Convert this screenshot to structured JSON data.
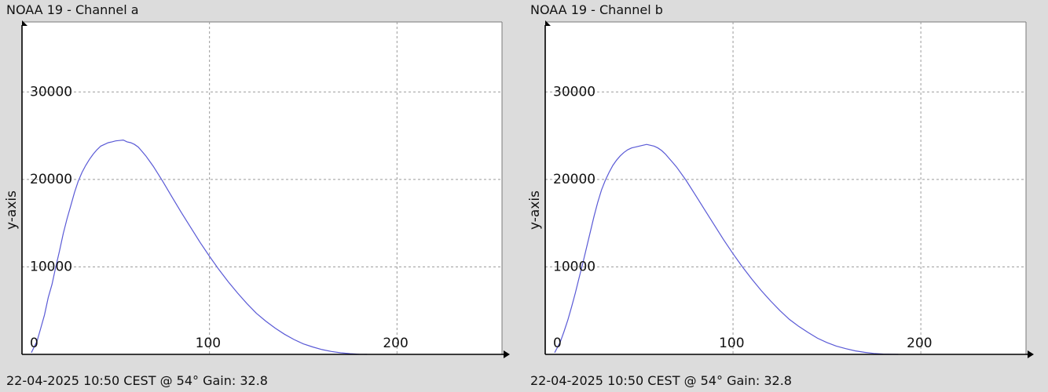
{
  "colors": {
    "background": "#dcdcdc",
    "plot_area": "#ffffff",
    "series": "#5a5ad6",
    "grid": "#9a9a9a"
  },
  "chart_data": [
    {
      "type": "line",
      "title": "NOAA 19 - Channel a",
      "footer": "22-04-2025 10:50 CEST @ 54° Gain: 32.8",
      "ylabel": "y-axis",
      "xlabel": "",
      "xlim": [
        0,
        256
      ],
      "ylim": [
        0,
        38000
      ],
      "x_ticks": [
        0,
        100,
        200
      ],
      "x_tick_labels": [
        "0",
        "100",
        "200"
      ],
      "y_ticks": [
        10000,
        20000,
        30000
      ],
      "y_tick_labels": [
        "10000",
        "20000",
        "30000"
      ],
      "grid": true,
      "series": [
        {
          "points": [
            [
              5,
              200
            ],
            [
              8,
              1500
            ],
            [
              10,
              3000
            ],
            [
              12,
              4500
            ],
            [
              14,
              6500
            ],
            [
              16,
              8000
            ],
            [
              18,
              10000
            ],
            [
              20,
              11800
            ],
            [
              22,
              13800
            ],
            [
              24,
              15500
            ],
            [
              26,
              17000
            ],
            [
              28,
              18500
            ],
            [
              30,
              19800
            ],
            [
              32,
              20800
            ],
            [
              34,
              21600
            ],
            [
              36,
              22300
            ],
            [
              38,
              22900
            ],
            [
              40,
              23400
            ],
            [
              42,
              23800
            ],
            [
              44,
              24000
            ],
            [
              46,
              24200
            ],
            [
              48,
              24300
            ],
            [
              50,
              24400
            ],
            [
              52,
              24450
            ],
            [
              54,
              24500
            ],
            [
              56,
              24300
            ],
            [
              58,
              24200
            ],
            [
              60,
              24000
            ],
            [
              62,
              23700
            ],
            [
              64,
              23200
            ],
            [
              66,
              22700
            ],
            [
              68,
              22100
            ],
            [
              70,
              21500
            ],
            [
              75,
              19800
            ],
            [
              80,
              18000
            ],
            [
              85,
              16200
            ],
            [
              90,
              14500
            ],
            [
              95,
              12800
            ],
            [
              100,
              11200
            ],
            [
              105,
              9700
            ],
            [
              110,
              8300
            ],
            [
              115,
              7000
            ],
            [
              120,
              5800
            ],
            [
              125,
              4700
            ],
            [
              130,
              3800
            ],
            [
              135,
              3000
            ],
            [
              140,
              2300
            ],
            [
              145,
              1700
            ],
            [
              150,
              1200
            ],
            [
              155,
              850
            ],
            [
              160,
              550
            ],
            [
              165,
              330
            ],
            [
              170,
              180
            ],
            [
              175,
              80
            ],
            [
              180,
              20
            ],
            [
              184,
              0
            ]
          ]
        }
      ]
    },
    {
      "type": "line",
      "title": "NOAA 19 - Channel b",
      "footer": "22-04-2025 10:50 CEST @ 54° Gain: 32.8",
      "ylabel": "y-axis",
      "xlabel": "",
      "xlim": [
        0,
        256
      ],
      "ylim": [
        0,
        38000
      ],
      "x_ticks": [
        0,
        100,
        200
      ],
      "x_tick_labels": [
        "0",
        "100",
        "200"
      ],
      "y_ticks": [
        10000,
        20000,
        30000
      ],
      "y_tick_labels": [
        "10000",
        "20000",
        "30000"
      ],
      "grid": true,
      "series": [
        {
          "points": [
            [
              5,
              200
            ],
            [
              8,
              1400
            ],
            [
              10,
              2600
            ],
            [
              12,
              3900
            ],
            [
              14,
              5400
            ],
            [
              16,
              7000
            ],
            [
              18,
              8700
            ],
            [
              20,
              10400
            ],
            [
              22,
              12200
            ],
            [
              24,
              14000
            ],
            [
              26,
              15800
            ],
            [
              28,
              17400
            ],
            [
              30,
              18800
            ],
            [
              32,
              19900
            ],
            [
              34,
              20800
            ],
            [
              36,
              21600
            ],
            [
              38,
              22200
            ],
            [
              40,
              22700
            ],
            [
              42,
              23100
            ],
            [
              44,
              23400
            ],
            [
              46,
              23600
            ],
            [
              48,
              23700
            ],
            [
              50,
              23800
            ],
            [
              52,
              23900
            ],
            [
              54,
              24000
            ],
            [
              56,
              23900
            ],
            [
              58,
              23800
            ],
            [
              60,
              23600
            ],
            [
              62,
              23300
            ],
            [
              64,
              22900
            ],
            [
              66,
              22400
            ],
            [
              68,
              21900
            ],
            [
              70,
              21400
            ],
            [
              75,
              19900
            ],
            [
              80,
              18200
            ],
            [
              85,
              16500
            ],
            [
              90,
              14800
            ],
            [
              95,
              13100
            ],
            [
              100,
              11500
            ],
            [
              105,
              10000
            ],
            [
              110,
              8600
            ],
            [
              115,
              7300
            ],
            [
              120,
              6100
            ],
            [
              125,
              5000
            ],
            [
              130,
              4000
            ],
            [
              135,
              3200
            ],
            [
              140,
              2500
            ],
            [
              145,
              1850
            ],
            [
              150,
              1350
            ],
            [
              155,
              950
            ],
            [
              160,
              650
            ],
            [
              165,
              400
            ],
            [
              170,
              230
            ],
            [
              175,
              110
            ],
            [
              180,
              40
            ],
            [
              185,
              10
            ],
            [
              188,
              0
            ]
          ]
        }
      ]
    }
  ]
}
